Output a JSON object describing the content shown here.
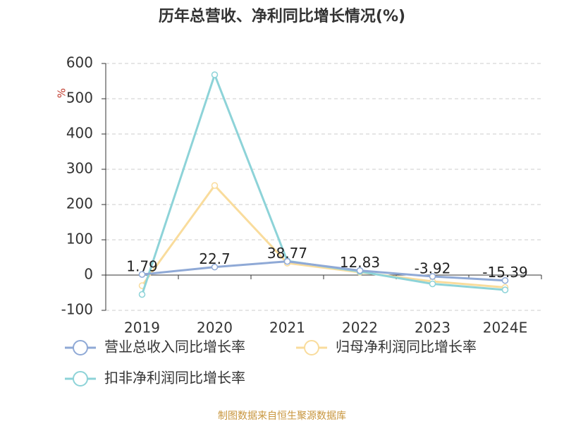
{
  "chart_data": {
    "type": "line",
    "title": "历年总营收、净利同比增长情况(%)",
    "y_label": "%",
    "categories": [
      "2019",
      "2020",
      "2021",
      "2022",
      "2023",
      "2024E"
    ],
    "series": [
      {
        "name": "营业总收入同比增长率",
        "color": "#8fa9d6",
        "values": [
          1.79,
          22.7,
          38.77,
          12.83,
          -3.92,
          -15.39
        ]
      },
      {
        "name": "归母净利润同比增长率",
        "color": "#f9dc9c",
        "values": [
          -30,
          254,
          34,
          8,
          -18,
          -35
        ]
      },
      {
        "name": "扣非净利润同比增长率",
        "color": "#8dd3d8",
        "values": [
          -55,
          568,
          40,
          10,
          -25,
          -42
        ]
      }
    ],
    "ylim": [
      -100,
      600
    ],
    "yticks": [
      -100,
      0,
      100,
      200,
      300,
      400,
      500,
      600
    ],
    "grid": true,
    "legend": "bottom",
    "source": "制图数据来自恒生聚源数据库"
  }
}
